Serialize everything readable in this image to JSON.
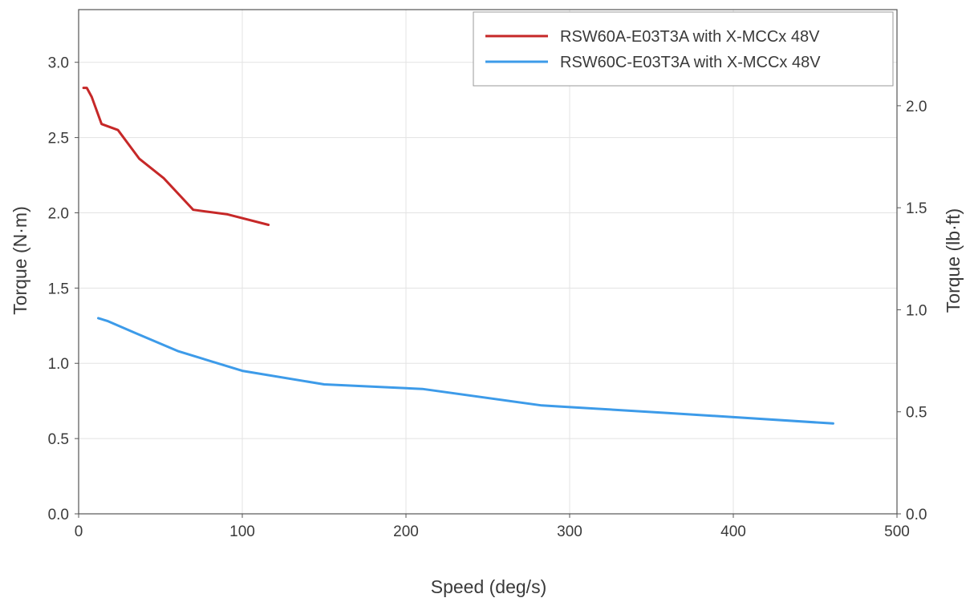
{
  "chart_data": {
    "type": "line",
    "xlabel": "Speed (deg/s)",
    "ylabel": "Torque (N·m)",
    "y2label": "Torque (lb·ft)",
    "xlim": [
      0,
      500
    ],
    "ylim": [
      0,
      3.35
    ],
    "y2lim": [
      0,
      2.471
    ],
    "x_ticks": [
      0,
      100,
      200,
      300,
      400,
      500
    ],
    "y_ticks": [
      0.0,
      0.5,
      1.0,
      1.5,
      2.0,
      2.5,
      3.0
    ],
    "y2_ticks": [
      0.0,
      0.5,
      1.0,
      1.5,
      2.0
    ],
    "x_tick_labels": [
      "0",
      "100",
      "200",
      "300",
      "400",
      "500"
    ],
    "y_tick_labels": [
      "0.0",
      "0.5",
      "1.0",
      "1.5",
      "2.0",
      "2.5",
      "3.0"
    ],
    "y2_tick_labels": [
      "0.0",
      "0.5",
      "1.0",
      "1.5",
      "2.0"
    ],
    "grid": true,
    "legend_position": "top-right",
    "series": [
      {
        "name": "RSW60A-E03T3A with X-MCCx 48V",
        "color": "#c62828",
        "x": [
          3,
          5,
          8,
          14,
          24,
          37,
          52,
          70,
          91,
          116
        ],
        "y": [
          2.83,
          2.83,
          2.77,
          2.59,
          2.55,
          2.36,
          2.23,
          2.02,
          1.99,
          1.92
        ]
      },
      {
        "name": "RSW60C-E03T3A with X-MCCx 48V",
        "color": "#3d9be9",
        "x": [
          12,
          18,
          35,
          61,
          100,
          150,
          210,
          283,
          360,
          461
        ],
        "y": [
          1.3,
          1.28,
          1.2,
          1.08,
          0.95,
          0.86,
          0.83,
          0.72,
          0.67,
          0.6
        ]
      }
    ]
  }
}
